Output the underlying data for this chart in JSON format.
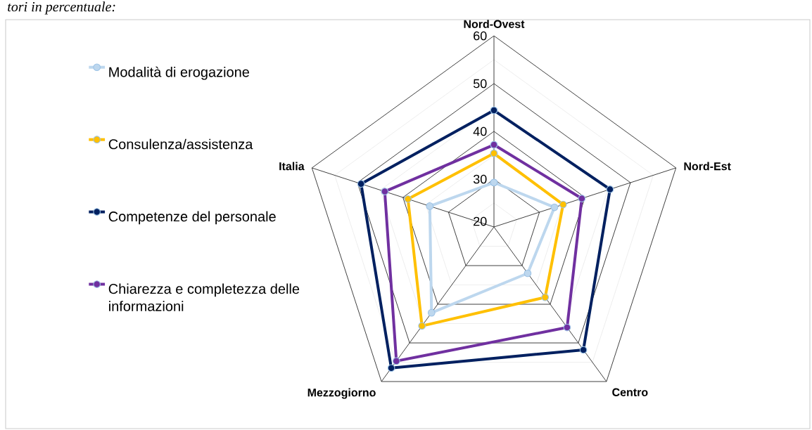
{
  "chart_data": {
    "type": "radar",
    "annotations": [
      "tori in percentuale:"
    ],
    "categories": [
      "Nord-Ovest",
      "Nord-Est",
      "Centro",
      "Mezzogiorno",
      "Italia"
    ],
    "ylim": [
      20,
      60
    ],
    "yticks": [
      20,
      30,
      40,
      50,
      60
    ],
    "grid": true,
    "legend": "left",
    "marker": "circle",
    "series": [
      {
        "name": "Modalità di erogazione",
        "color": "#bdd7ee",
        "values": [
          29.3,
          33.3,
          32.0,
          42.2,
          34.1
        ]
      },
      {
        "name": "Consulenza/assistenza",
        "color": "#ffc000",
        "values": [
          35.4,
          35.2,
          38.2,
          45.6,
          38.9
        ]
      },
      {
        "name": "Competenze del personale",
        "color": "#002060",
        "values": [
          44.4,
          45.5,
          51.8,
          56.5,
          49.2
        ]
      },
      {
        "name": "Chiarezza e completezza delle informazioni",
        "color": "#7030a0",
        "values": [
          37.2,
          39.3,
          46.0,
          54.7,
          44.0
        ]
      }
    ]
  }
}
